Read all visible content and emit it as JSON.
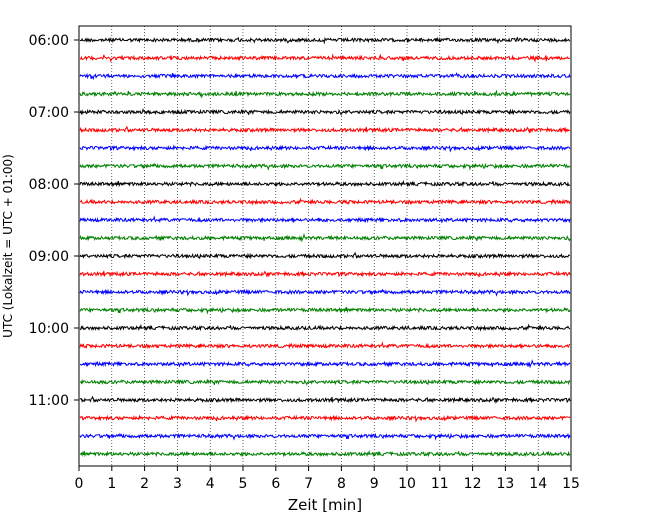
{
  "chart_data": {
    "type": "line",
    "title": "",
    "xlabel": "Zeit  [min]",
    "ylabel": "UTC (Lokalzeit = UTC + 01:00)",
    "xlim": [
      0,
      15
    ],
    "x_ticks": [
      "0",
      "1",
      "2",
      "3",
      "4",
      "5",
      "6",
      "7",
      "8",
      "9",
      "10",
      "11",
      "12",
      "13",
      "14",
      "15"
    ],
    "grid": "vertical dotted at each minute",
    "y_ticks": [
      "06:00",
      "07:00",
      "08:00",
      "09:00",
      "10:00",
      "11:00"
    ],
    "trace_colors": [
      "#000000",
      "#ff0000",
      "#0000ff",
      "#008000"
    ],
    "traces_start": "06:00",
    "trace_interval_min": 15,
    "trace_count": 24
  }
}
